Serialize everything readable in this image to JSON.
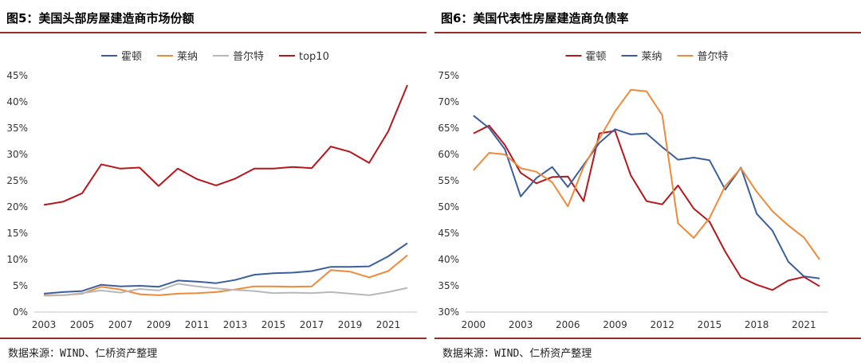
{
  "panels": [
    {
      "title": "图5：美国头部房屋建造商市场份额",
      "source": "数据来源：WIND、仁桥资产整理"
    },
    {
      "title": "图6：美国代表性房屋建造商负债率",
      "source": "数据来源：WIND、仁桥资产整理"
    }
  ],
  "chart_data": [
    {
      "type": "line",
      "title": "",
      "xlabel": "",
      "ylabel": "",
      "x": [
        2003,
        2004,
        2005,
        2006,
        2007,
        2008,
        2009,
        2010,
        2011,
        2012,
        2013,
        2014,
        2015,
        2016,
        2017,
        2018,
        2019,
        2020,
        2021,
        2022
      ],
      "xticks": [
        "2003",
        "2005",
        "2007",
        "2009",
        "2011",
        "2013",
        "2015",
        "2017",
        "2019",
        "2021"
      ],
      "xtick_values": [
        2003,
        2005,
        2007,
        2009,
        2011,
        2013,
        2015,
        2017,
        2019,
        2021
      ],
      "xlim": [
        2002.5,
        2022.5
      ],
      "ylim": [
        0,
        0.45
      ],
      "yticks": [
        0,
        0.05,
        0.1,
        0.15,
        0.2,
        0.25,
        0.3,
        0.35,
        0.4,
        0.45
      ],
      "ytick_labels": [
        "0%",
        "5%",
        "10%",
        "15%",
        "20%",
        "25%",
        "30%",
        "35%",
        "40%",
        "45%"
      ],
      "grid": false,
      "legend_position": "top-center",
      "series": [
        {
          "name": "霍顿",
          "color": "#3b5f9e",
          "values": [
            0.035,
            0.038,
            0.04,
            0.052,
            0.049,
            0.05,
            0.048,
            0.06,
            0.058,
            0.055,
            0.061,
            0.071,
            0.074,
            0.075,
            0.078,
            0.086,
            0.086,
            0.087,
            0.106,
            0.131
          ]
        },
        {
          "name": "莱纳",
          "color": "#ee8a3a",
          "values": [
            0.032,
            0.032,
            0.035,
            0.048,
            0.043,
            0.034,
            0.032,
            0.035,
            0.036,
            0.038,
            0.043,
            0.049,
            0.049,
            0.048,
            0.049,
            0.08,
            0.077,
            0.066,
            0.078,
            0.108
          ]
        },
        {
          "name": "普尔特",
          "color": "#b8b8b8",
          "values": [
            0.031,
            0.032,
            0.036,
            0.041,
            0.037,
            0.044,
            0.041,
            0.054,
            0.049,
            0.045,
            0.042,
            0.04,
            0.036,
            0.037,
            0.036,
            0.038,
            0.035,
            0.032,
            0.038,
            0.046
          ]
        },
        {
          "name": "top10",
          "color": "#b5171d",
          "values": [
            0.204,
            0.21,
            0.226,
            0.281,
            0.273,
            0.275,
            0.24,
            0.273,
            0.253,
            0.241,
            0.254,
            0.273,
            0.273,
            0.276,
            0.274,
            0.315,
            0.305,
            0.284,
            0.344,
            0.432
          ]
        }
      ]
    },
    {
      "type": "line",
      "title": "",
      "xlabel": "",
      "ylabel": "",
      "x": [
        2000,
        2001,
        2002,
        2003,
        2004,
        2005,
        2006,
        2007,
        2008,
        2009,
        2010,
        2011,
        2012,
        2013,
        2014,
        2015,
        2016,
        2017,
        2018,
        2019,
        2020,
        2021,
        2022
      ],
      "xticks": [
        "2000",
        "2003",
        "2006",
        "2009",
        "2012",
        "2015",
        "2018",
        "2021"
      ],
      "xtick_values": [
        2000,
        2003,
        2006,
        2009,
        2012,
        2015,
        2018,
        2021
      ],
      "xlim": [
        1999.5,
        2022.5
      ],
      "ylim": [
        0.3,
        0.75
      ],
      "yticks": [
        0.3,
        0.35,
        0.4,
        0.45,
        0.5,
        0.55,
        0.6,
        0.65,
        0.7,
        0.75
      ],
      "ytick_labels": [
        "30%",
        "35%",
        "40%",
        "45%",
        "50%",
        "55%",
        "60%",
        "65%",
        "70%",
        "75%"
      ],
      "grid": false,
      "legend_position": "top-center",
      "series": [
        {
          "name": "霍顿",
          "color": "#b5171d",
          "values": [
            0.64,
            0.655,
            0.618,
            0.565,
            0.545,
            0.557,
            0.558,
            0.511,
            0.64,
            0.645,
            0.56,
            0.511,
            0.505,
            0.541,
            0.497,
            0.472,
            0.415,
            0.366,
            0.352,
            0.342,
            0.36,
            0.367,
            0.349
          ]
        },
        {
          "name": "莱纳",
          "color": "#3b5f9e",
          "values": [
            0.674,
            0.65,
            0.61,
            0.52,
            0.555,
            0.576,
            0.538,
            0.58,
            0.622,
            0.648,
            0.638,
            0.64,
            0.614,
            0.59,
            0.594,
            0.589,
            0.533,
            0.575,
            0.487,
            0.455,
            0.396,
            0.368,
            0.364
          ]
        },
        {
          "name": "普尔特",
          "color": "#ee8a3a",
          "values": [
            0.57,
            0.603,
            0.6,
            0.574,
            0.567,
            0.547,
            0.501,
            0.576,
            0.63,
            0.682,
            0.723,
            0.72,
            0.675,
            0.469,
            0.441,
            0.479,
            0.54,
            0.574,
            0.529,
            0.492,
            0.465,
            0.442,
            0.4
          ]
        }
      ]
    }
  ]
}
